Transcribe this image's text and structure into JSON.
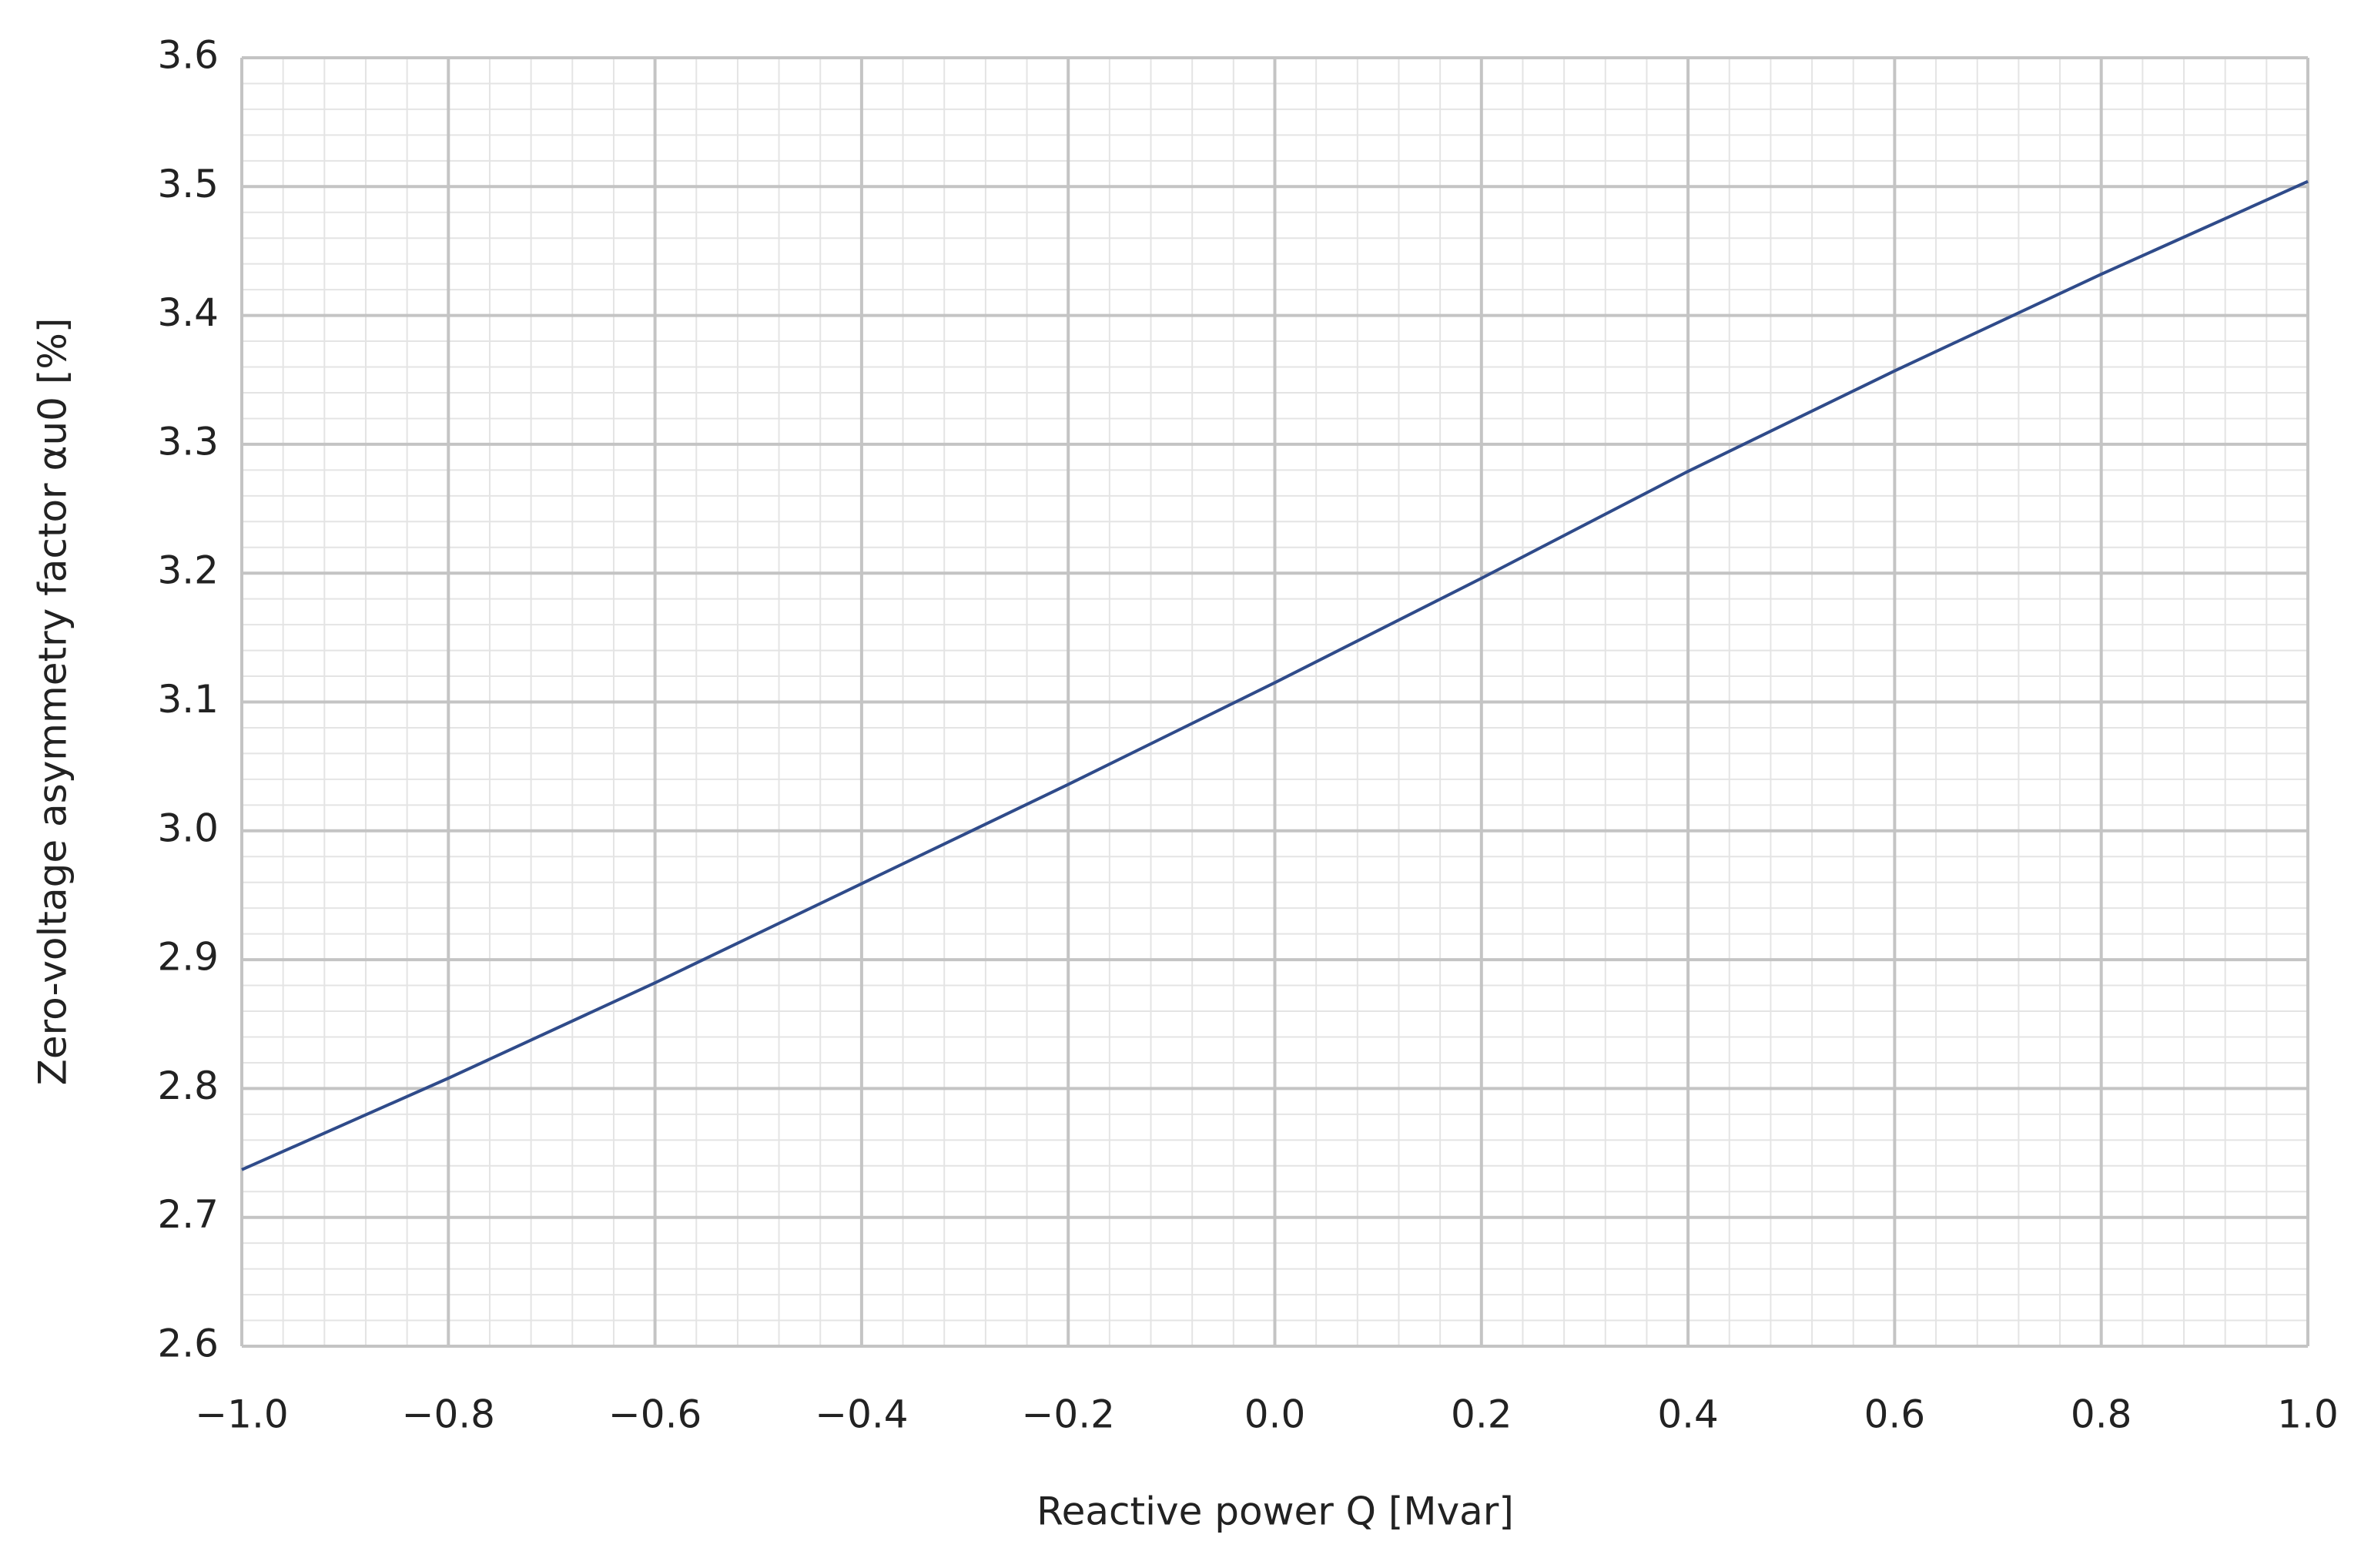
{
  "chart_data": {
    "type": "line",
    "x_label": "Reactive power Q [Mvar]",
    "y_label": "Zero-voltage asymmetry factor αu0 [%]",
    "x": [
      -1.0,
      -0.8,
      -0.6,
      -0.4,
      -0.2,
      0.0,
      0.2,
      0.4,
      0.6,
      0.8,
      1.0
    ],
    "series": [
      {
        "color": "#2f4b8a",
        "values": [
          2.737,
          2.808,
          2.882,
          2.959,
          3.036,
          3.115,
          3.196,
          3.279,
          3.357,
          3.432,
          3.504
        ]
      }
    ],
    "xlim": [
      -1.0,
      1.0
    ],
    "ylim": [
      2.6,
      3.6
    ],
    "xticks": [
      {
        "value": -1.0,
        "label": "−1.0"
      },
      {
        "value": -0.8,
        "label": "−0.8"
      },
      {
        "value": -0.6,
        "label": "−0.6"
      },
      {
        "value": -0.4,
        "label": "−0.4"
      },
      {
        "value": -0.2,
        "label": "−0.2"
      },
      {
        "value": 0.0,
        "label": "0.0"
      },
      0.2,
      0.4,
      0.6,
      0.8,
      {
        "value": 1.0,
        "label": "1.0"
      }
    ],
    "yticks": [
      2.6,
      2.7,
      2.8,
      2.9,
      {
        "value": 3.0,
        "label": "3.0"
      },
      3.1,
      3.2,
      3.3,
      3.4,
      3.5,
      3.6
    ],
    "grid": true,
    "minor_grid": true
  }
}
